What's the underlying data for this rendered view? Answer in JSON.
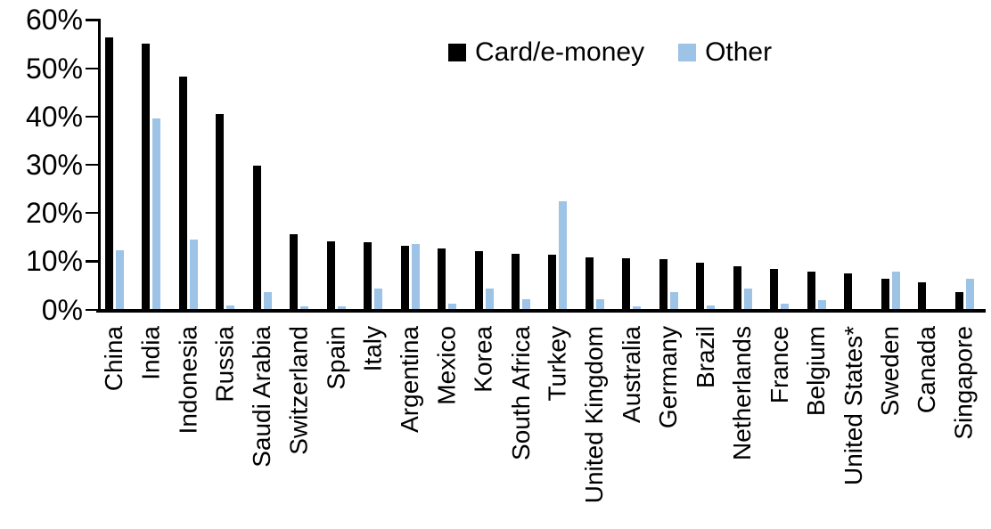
{
  "chart_data": {
    "type": "bar",
    "title": "",
    "xlabel": "",
    "ylabel": "",
    "ylim": [
      0,
      60
    ],
    "ytick_step": 10,
    "ytick_labels": [
      "0%",
      "10%",
      "20%",
      "30%",
      "40%",
      "50%",
      "60%"
    ],
    "unit": "percent",
    "grid": false,
    "legend_position": "top-center",
    "categories": [
      "China",
      "India",
      "Indonesia",
      "Russia",
      "Saudi Arabia",
      "Switzerland",
      "Spain",
      "Italy",
      "Argentina",
      "Mexico",
      "Korea",
      "South Africa",
      "Turkey",
      "United Kingdom",
      "Australia",
      "Germany",
      "Brazil",
      "Netherlands",
      "France",
      "Belgium",
      "United States*",
      "Sweden",
      "Canada",
      "Singapore"
    ],
    "series": [
      {
        "name": "Card/e-money",
        "color": "#000000",
        "values": [
          56.5,
          55.2,
          48.4,
          40.6,
          29.9,
          15.6,
          14.2,
          14.0,
          13.2,
          12.8,
          12.1,
          11.6,
          11.4,
          10.9,
          10.7,
          10.5,
          9.8,
          9.0,
          8.4,
          7.9,
          7.6,
          6.4,
          5.8,
          3.7
        ]
      },
      {
        "name": "Other",
        "color": "#9DC3E6",
        "values": [
          12.3,
          39.6,
          14.5,
          0.9,
          3.6,
          0.7,
          0.8,
          4.4,
          13.7,
          1.2,
          4.4,
          2.3,
          22.6,
          2.2,
          0.8,
          3.7,
          0.9,
          4.5,
          1.2,
          2.0,
          0.2,
          7.9,
          0.0,
          6.5
        ]
      }
    ],
    "axis_color": "#000000",
    "background_color": "#FFFFFF"
  }
}
